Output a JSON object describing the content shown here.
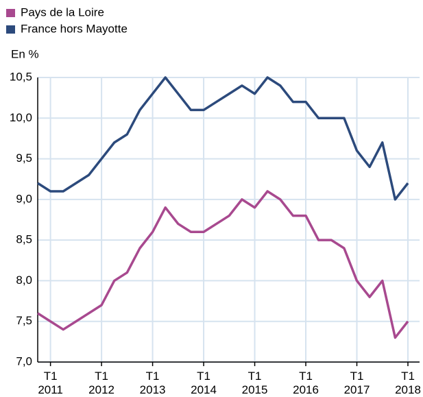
{
  "chart_data": {
    "type": "line",
    "y_label": "En %",
    "categories": [
      null,
      "T1 2011",
      null,
      null,
      null,
      "T1 2012",
      null,
      null,
      null,
      "T1 2013",
      null,
      null,
      null,
      "T1 2014",
      null,
      null,
      null,
      "T1 2015",
      null,
      null,
      null,
      "T1 2016",
      null,
      null,
      null,
      "T1 2017",
      null,
      null,
      null,
      "T1 2018"
    ],
    "series": [
      {
        "name": "Pays de la Loire",
        "color": "#a8498f",
        "values": [
          7.6,
          7.5,
          7.4,
          7.5,
          7.6,
          7.7,
          8.0,
          8.1,
          8.4,
          8.6,
          8.9,
          8.7,
          8.6,
          8.6,
          8.7,
          8.8,
          9.0,
          8.9,
          9.1,
          9.0,
          8.8,
          8.8,
          8.5,
          8.5,
          8.4,
          8.0,
          7.8,
          8.0,
          7.3,
          7.5
        ]
      },
      {
        "name": "France hors Mayotte",
        "color": "#2c4a7c",
        "values": [
          9.2,
          9.1,
          9.1,
          9.2,
          9.3,
          9.5,
          9.7,
          9.8,
          10.1,
          10.3,
          10.5,
          10.3,
          10.1,
          10.1,
          10.2,
          10.3,
          10.4,
          10.3,
          10.5,
          10.4,
          10.2,
          10.2,
          10.0,
          10.0,
          10.0,
          9.6,
          9.4,
          9.7,
          9.0,
          9.2
        ]
      }
    ],
    "ylim": [
      7.0,
      10.5
    ],
    "yticks": [
      {
        "value": 7.0,
        "label": "7,0"
      },
      {
        "value": 7.5,
        "label": "7,5"
      },
      {
        "value": 8.0,
        "label": "8,0"
      },
      {
        "value": 8.5,
        "label": "8,5"
      },
      {
        "value": 9.0,
        "label": "9,0"
      },
      {
        "value": 9.5,
        "label": "9,5"
      },
      {
        "value": 10.0,
        "label": "10,0"
      },
      {
        "value": 10.5,
        "label": "10,5"
      }
    ],
    "grid": true
  }
}
